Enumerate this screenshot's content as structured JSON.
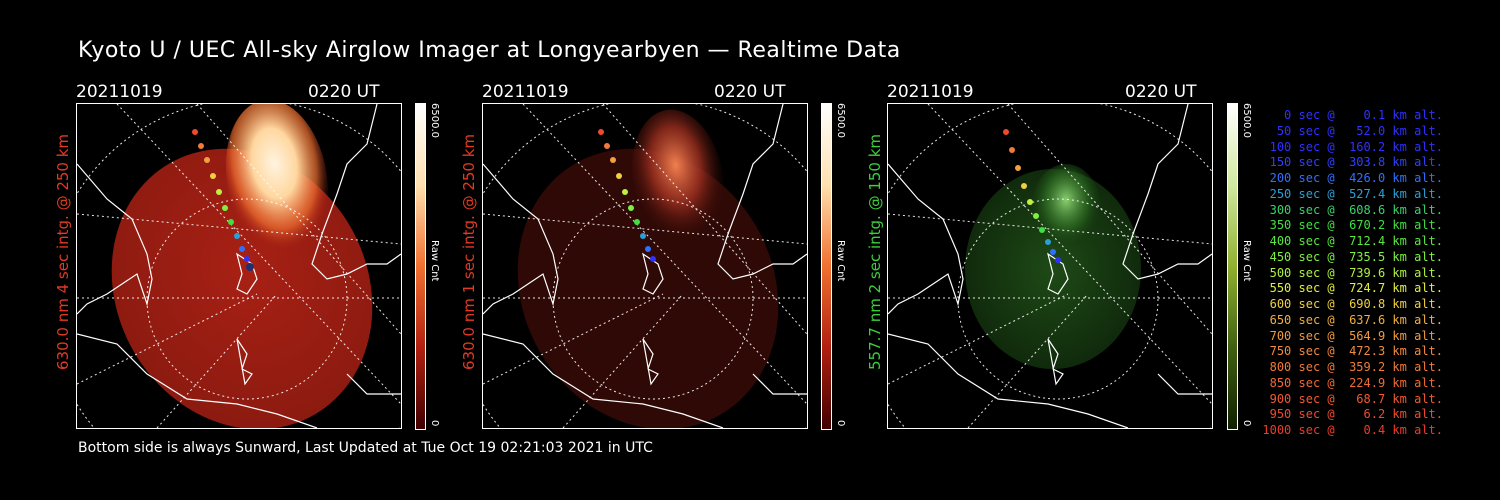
{
  "title": "Kyoto U / UEC All-sky Airglow Imager at Longyearbyen — Realtime Data",
  "panels": [
    {
      "date": "20211019",
      "time": "0220 UT",
      "side_label": "630.0 nm 4 sec intg. @ 250 km",
      "side_color": "#e23a22",
      "colorbar_max": "6500.0",
      "colorbar_min": "0",
      "colorbar_unit": "Raw Cnt"
    },
    {
      "date": "20211019",
      "time": "0220 UT",
      "side_label": "630.0 nm 1 sec intg. @ 250 km",
      "side_color": "#e23a22",
      "colorbar_max": "6500.0",
      "colorbar_min": "0",
      "colorbar_unit": "Raw Cnt"
    },
    {
      "date": "20211019",
      "time": "0220 UT",
      "side_label": "557.7 nm 2 sec intg. @ 150 km",
      "side_color": "#3ccf3c",
      "colorbar_max": "6500.0",
      "colorbar_min": "0",
      "colorbar_unit": "Raw Cnt"
    }
  ],
  "legend": [
    {
      "text": "   0 sec @    0.1 km alt.",
      "color": "#3030ff"
    },
    {
      "text": "  50 sec @   52.0 km alt.",
      "color": "#3030ff"
    },
    {
      "text": " 100 sec @  160.2 km alt.",
      "color": "#3030ff"
    },
    {
      "text": " 150 sec @  303.8 km alt.",
      "color": "#3040ff"
    },
    {
      "text": " 200 sec @  426.0 km alt.",
      "color": "#3070ff"
    },
    {
      "text": " 250 sec @  527.4 km alt.",
      "color": "#2aa0d8"
    },
    {
      "text": " 300 sec @  608.6 km alt.",
      "color": "#38d070"
    },
    {
      "text": " 350 sec @  670.2 km alt.",
      "color": "#40e040"
    },
    {
      "text": " 400 sec @  712.4 km alt.",
      "color": "#5ae840"
    },
    {
      "text": " 450 sec @  735.5 km alt.",
      "color": "#80f040"
    },
    {
      "text": " 500 sec @  739.6 km alt.",
      "color": "#b0f040"
    },
    {
      "text": " 550 sec @  724.7 km alt.",
      "color": "#e0f040"
    },
    {
      "text": " 600 sec @  690.8 km alt.",
      "color": "#f0d040"
    },
    {
      "text": " 650 sec @  637.6 km alt.",
      "color": "#f0b040"
    },
    {
      "text": " 700 sec @  564.9 km alt.",
      "color": "#f09a40"
    },
    {
      "text": " 750 sec @  472.3 km alt.",
      "color": "#f08a40"
    },
    {
      "text": " 800 sec @  359.2 km alt.",
      "color": "#f07a3a"
    },
    {
      "text": " 850 sec @  224.9 km alt.",
      "color": "#f06a36"
    },
    {
      "text": " 900 sec @   68.7 km alt.",
      "color": "#f05a32"
    },
    {
      "text": " 950 sec @    6.2 km alt.",
      "color": "#f04a2e"
    },
    {
      "text": "1000 sec @    0.4 km alt.",
      "color": "#f03a2a"
    }
  ],
  "footer": "Bottom side is always Sunward, Last Updated at Tue Oct 19 02:21:03 2021 in UTC"
}
